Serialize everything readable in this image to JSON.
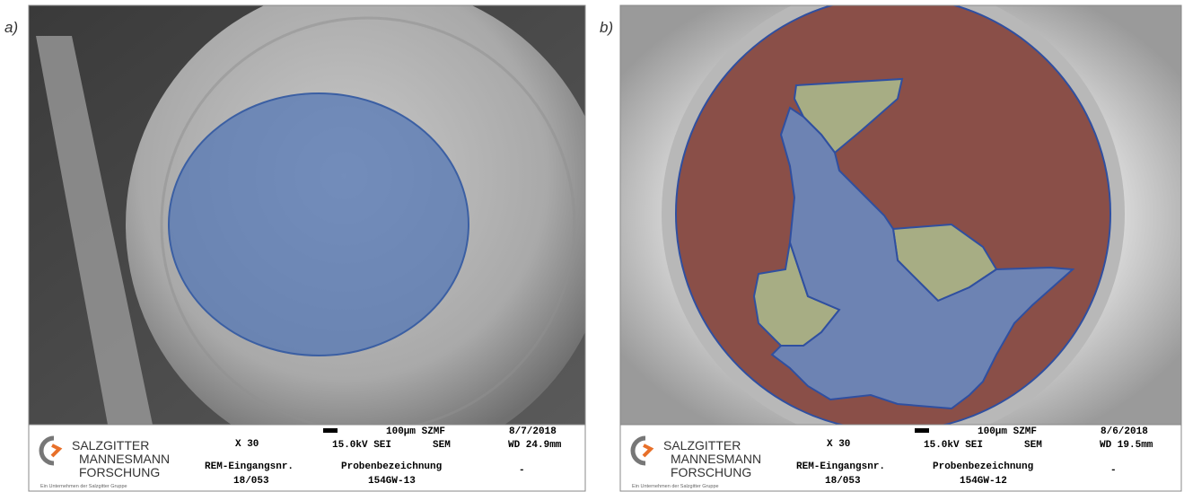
{
  "panels": [
    {
      "label": "a)",
      "logo": {
        "line1": "SALZGITTER",
        "line2": "MANNESMANN",
        "line3": "FORSCHUNG",
        "tagline": "Ein Unternehmen der Salzgitter Gruppe"
      },
      "info": {
        "magnification": "X 30",
        "scale": "100µm SZMF",
        "date": "8/7/2018",
        "voltage": "15.0kV SEI",
        "mode": "SEM",
        "working_distance": "WD 24.9mm",
        "entry_label": "REM-Eingangsnr.",
        "entry_number": "18/053",
        "sample_label": "Probenbezeichnung",
        "sample_name": "154GW-13",
        "remark": "-"
      }
    },
    {
      "label": "b)",
      "logo": {
        "line1": "SALZGITTER",
        "line2": "MANNESMANN",
        "line3": "FORSCHUNG",
        "tagline": "Ein Unternehmen der Salzgitter Gruppe"
      },
      "info": {
        "magnification": "X 30",
        "scale": "100µm SZMF",
        "date": "8/6/2018",
        "voltage": "15.0kV SEI",
        "mode": "SEM",
        "working_distance": "WD 19.5mm",
        "entry_label": "REM-Eingangsnr.",
        "entry_number": "18/053",
        "sample_label": "Probenbezeichnung",
        "sample_name": "154GW-12",
        "remark": "-"
      }
    }
  ]
}
